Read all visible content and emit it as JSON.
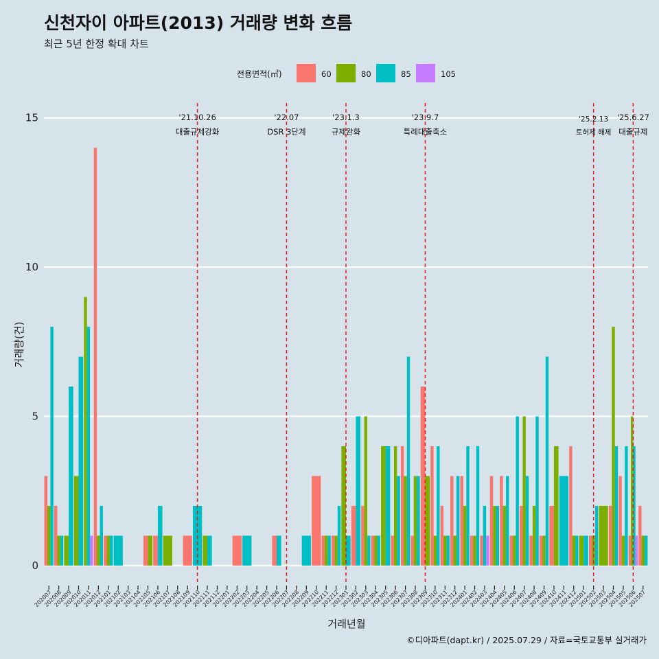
{
  "title": "신천자이 아파트(2013) 거래량 변화 흐름",
  "subtitle": "최근 5년 한정 확대 차트",
  "caption": "©디아파트(dapt.kr) / 2025.07.29 / 자료=국토교통부 실거래가",
  "colors": {
    "60": "#f8766d",
    "80": "#7cae00",
    "85": "#00bfc4",
    "105": "#c77cff",
    "background": "#d6e3ea",
    "grid": "#ffffff",
    "annotation_line": "#e41a1c"
  },
  "chart_data": {
    "type": "bar",
    "xlabel": "거래년월",
    "ylabel": "거래량(건)",
    "ylim": [
      -0.6,
      15.5
    ],
    "yticks": [
      0,
      5,
      10,
      15
    ],
    "legend": {
      "title": "전용면적(㎡)",
      "position": "top",
      "entries": [
        "60",
        "80",
        "85",
        "105"
      ]
    },
    "categories": [
      "202007",
      "202008",
      "202009",
      "202010",
      "202011",
      "202012",
      "202101",
      "202102",
      "202103",
      "202104",
      "202105",
      "202106",
      "202107",
      "202108",
      "202109",
      "202110",
      "202111",
      "202112",
      "202201",
      "202202",
      "202203",
      "202204",
      "202205",
      "202206",
      "202207",
      "202208",
      "202209",
      "202210",
      "202211",
      "202212",
      "202301",
      "202302",
      "202303",
      "202304",
      "202305",
      "202306",
      "202307",
      "202308",
      "202309",
      "202310",
      "202311",
      "202312",
      "202401",
      "202402",
      "202403",
      "202404",
      "202405",
      "202406",
      "202407",
      "202408",
      "202409",
      "202410",
      "202411",
      "202412",
      "202501",
      "202502",
      "202503",
      "202504",
      "202505",
      "202506",
      "202507"
    ],
    "series": [
      {
        "name": "60",
        "values": [
          3,
          2,
          0,
          0,
          0,
          14,
          1,
          0,
          0,
          0,
          1,
          1,
          0,
          0,
          1,
          0,
          0,
          0,
          0,
          1,
          0,
          0,
          0,
          1,
          0,
          0,
          0,
          3,
          1,
          1,
          0,
          2,
          2,
          1,
          0,
          1,
          4,
          1,
          6,
          4,
          2,
          3,
          3,
          1,
          1,
          3,
          3,
          1,
          2,
          1,
          1,
          2,
          0,
          4,
          0,
          1,
          0,
          2,
          3,
          1,
          2
        ]
      },
      {
        "name": "80",
        "values": [
          2,
          1,
          1,
          3,
          9,
          1,
          1,
          0,
          0,
          0,
          1,
          0,
          1,
          0,
          0,
          0,
          1,
          0,
          0,
          0,
          0,
          0,
          0,
          0,
          0,
          0,
          0,
          0,
          1,
          1,
          4,
          0,
          5,
          1,
          4,
          4,
          3,
          3,
          3,
          1,
          1,
          1,
          2,
          1,
          0,
          2,
          2,
          1,
          5,
          2,
          1,
          4,
          0,
          1,
          1,
          1,
          2,
          8,
          1,
          5,
          1
        ]
      },
      {
        "name": "85",
        "values": [
          8,
          1,
          6,
          7,
          8,
          2,
          1,
          1,
          0,
          0,
          0,
          2,
          0,
          0,
          0,
          2,
          1,
          0,
          0,
          0,
          1,
          0,
          0,
          1,
          0,
          0,
          1,
          0,
          1,
          2,
          1,
          5,
          1,
          1,
          4,
          3,
          7,
          3,
          0,
          4,
          1,
          3,
          4,
          4,
          2,
          2,
          3,
          5,
          3,
          5,
          7,
          0,
          3,
          1,
          1,
          2,
          0,
          4,
          4,
          4,
          1
        ]
      },
      {
        "name": "105",
        "values": [
          0,
          0,
          0,
          0,
          1,
          0,
          0,
          0,
          0,
          0,
          0,
          0,
          0,
          0,
          0,
          0,
          0,
          0,
          0,
          0,
          0,
          0,
          0,
          0,
          0,
          0,
          0,
          0,
          0,
          0,
          0,
          0,
          0,
          0,
          0,
          0,
          0,
          0,
          0,
          0,
          0,
          0,
          0,
          0,
          1,
          0,
          0,
          0,
          0,
          0,
          0,
          0,
          0,
          0,
          0,
          0,
          0,
          0,
          0,
          1,
          0
        ]
      }
    ],
    "annotations": [
      {
        "at": "202110",
        "date": "'21.10.26",
        "label": "대출규제강화"
      },
      {
        "at": "202207",
        "date": "'22.07",
        "label": "DSR 3단계"
      },
      {
        "at": "202301",
        "date": "'23.1.3",
        "label": "규제완화"
      },
      {
        "at": "202309",
        "date": "'23.9.7",
        "label": "특례대출축소"
      },
      {
        "at": "202502",
        "date": "'25.2.13",
        "label": "토허제 해제"
      },
      {
        "at": "202506",
        "date": "'25.6.27",
        "label": "대출규제"
      }
    ]
  }
}
